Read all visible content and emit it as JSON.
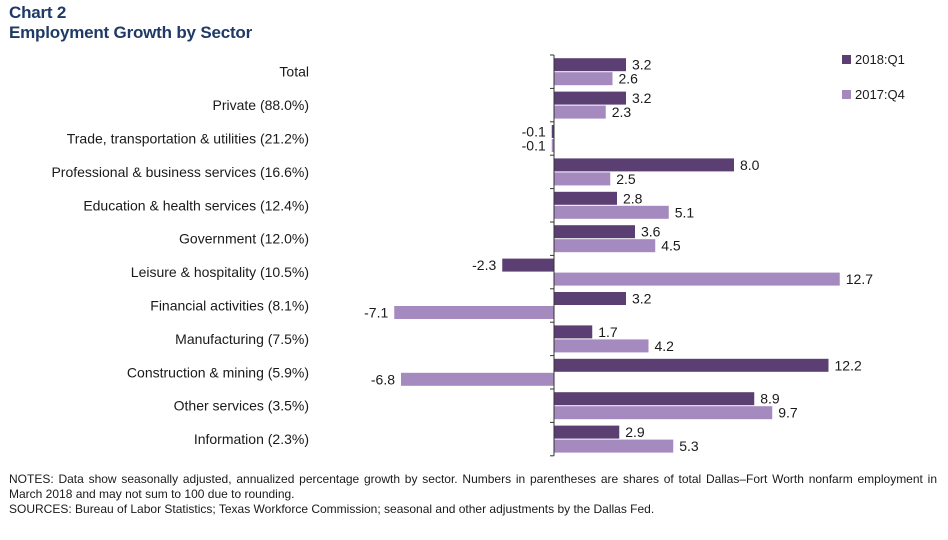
{
  "header": {
    "chart_label": "Chart 2",
    "title": "Employment Growth by Sector"
  },
  "notes": {
    "notes_text": "NOTES: Data show seasonally adjusted, annualized percentage growth by sector. Numbers in parentheses are shares of total Dallas–Fort Worth nonfarm employment in March 2018 and may not sum to 100 due to rounding.",
    "sources_text": "SOURCES: Bureau of Labor Statistics; Texas Workforce Commission; seasonal and other adjustments by the Dallas Fed."
  },
  "colors": {
    "series_2018q1": "#5b3f73",
    "series_2017q4": "#a58abf"
  },
  "chart_data": {
    "type": "bar",
    "orientation": "horizontal",
    "title": "Employment Growth by Sector",
    "categories": [
      "Total",
      "Private (88.0%)",
      "Trade, transportation & utilities (21.2%)",
      "Professional & business services (16.6%)",
      "Education & health services (12.4%)",
      "Government (12.0%)",
      "Leisure & hospitality (10.5%)",
      "Financial activities (8.1%)",
      "Manufacturing (7.5%)",
      "Construction & mining (5.9%)",
      "Other services (3.5%)",
      "Information (2.3%)"
    ],
    "series": [
      {
        "name": "2018:Q1",
        "values": [
          3.2,
          3.2,
          -0.1,
          8.0,
          2.8,
          3.6,
          -2.3,
          3.2,
          1.7,
          12.2,
          8.9,
          2.9
        ]
      },
      {
        "name": "2017:Q4",
        "values": [
          2.6,
          2.3,
          -0.1,
          2.5,
          5.1,
          4.5,
          12.7,
          -7.1,
          4.2,
          -6.8,
          9.7,
          5.3
        ]
      }
    ],
    "data_labels": [
      [
        "3.2",
        "3.2",
        "-0.1",
        "8.0",
        "2.8",
        "3.6",
        "-2.3",
        "3.2",
        "1.7",
        "12.2",
        "8.9",
        "2.9"
      ],
      [
        "2.6",
        "2.3",
        "-0.1",
        "2.5",
        "5.1",
        "4.5",
        "12.7",
        "-7.1",
        "4.2",
        "-6.8",
        "9.7",
        "5.3"
      ]
    ],
    "xlim": [
      -7.5,
      13.5
    ],
    "grid": false,
    "legend_position": "top-right"
  }
}
